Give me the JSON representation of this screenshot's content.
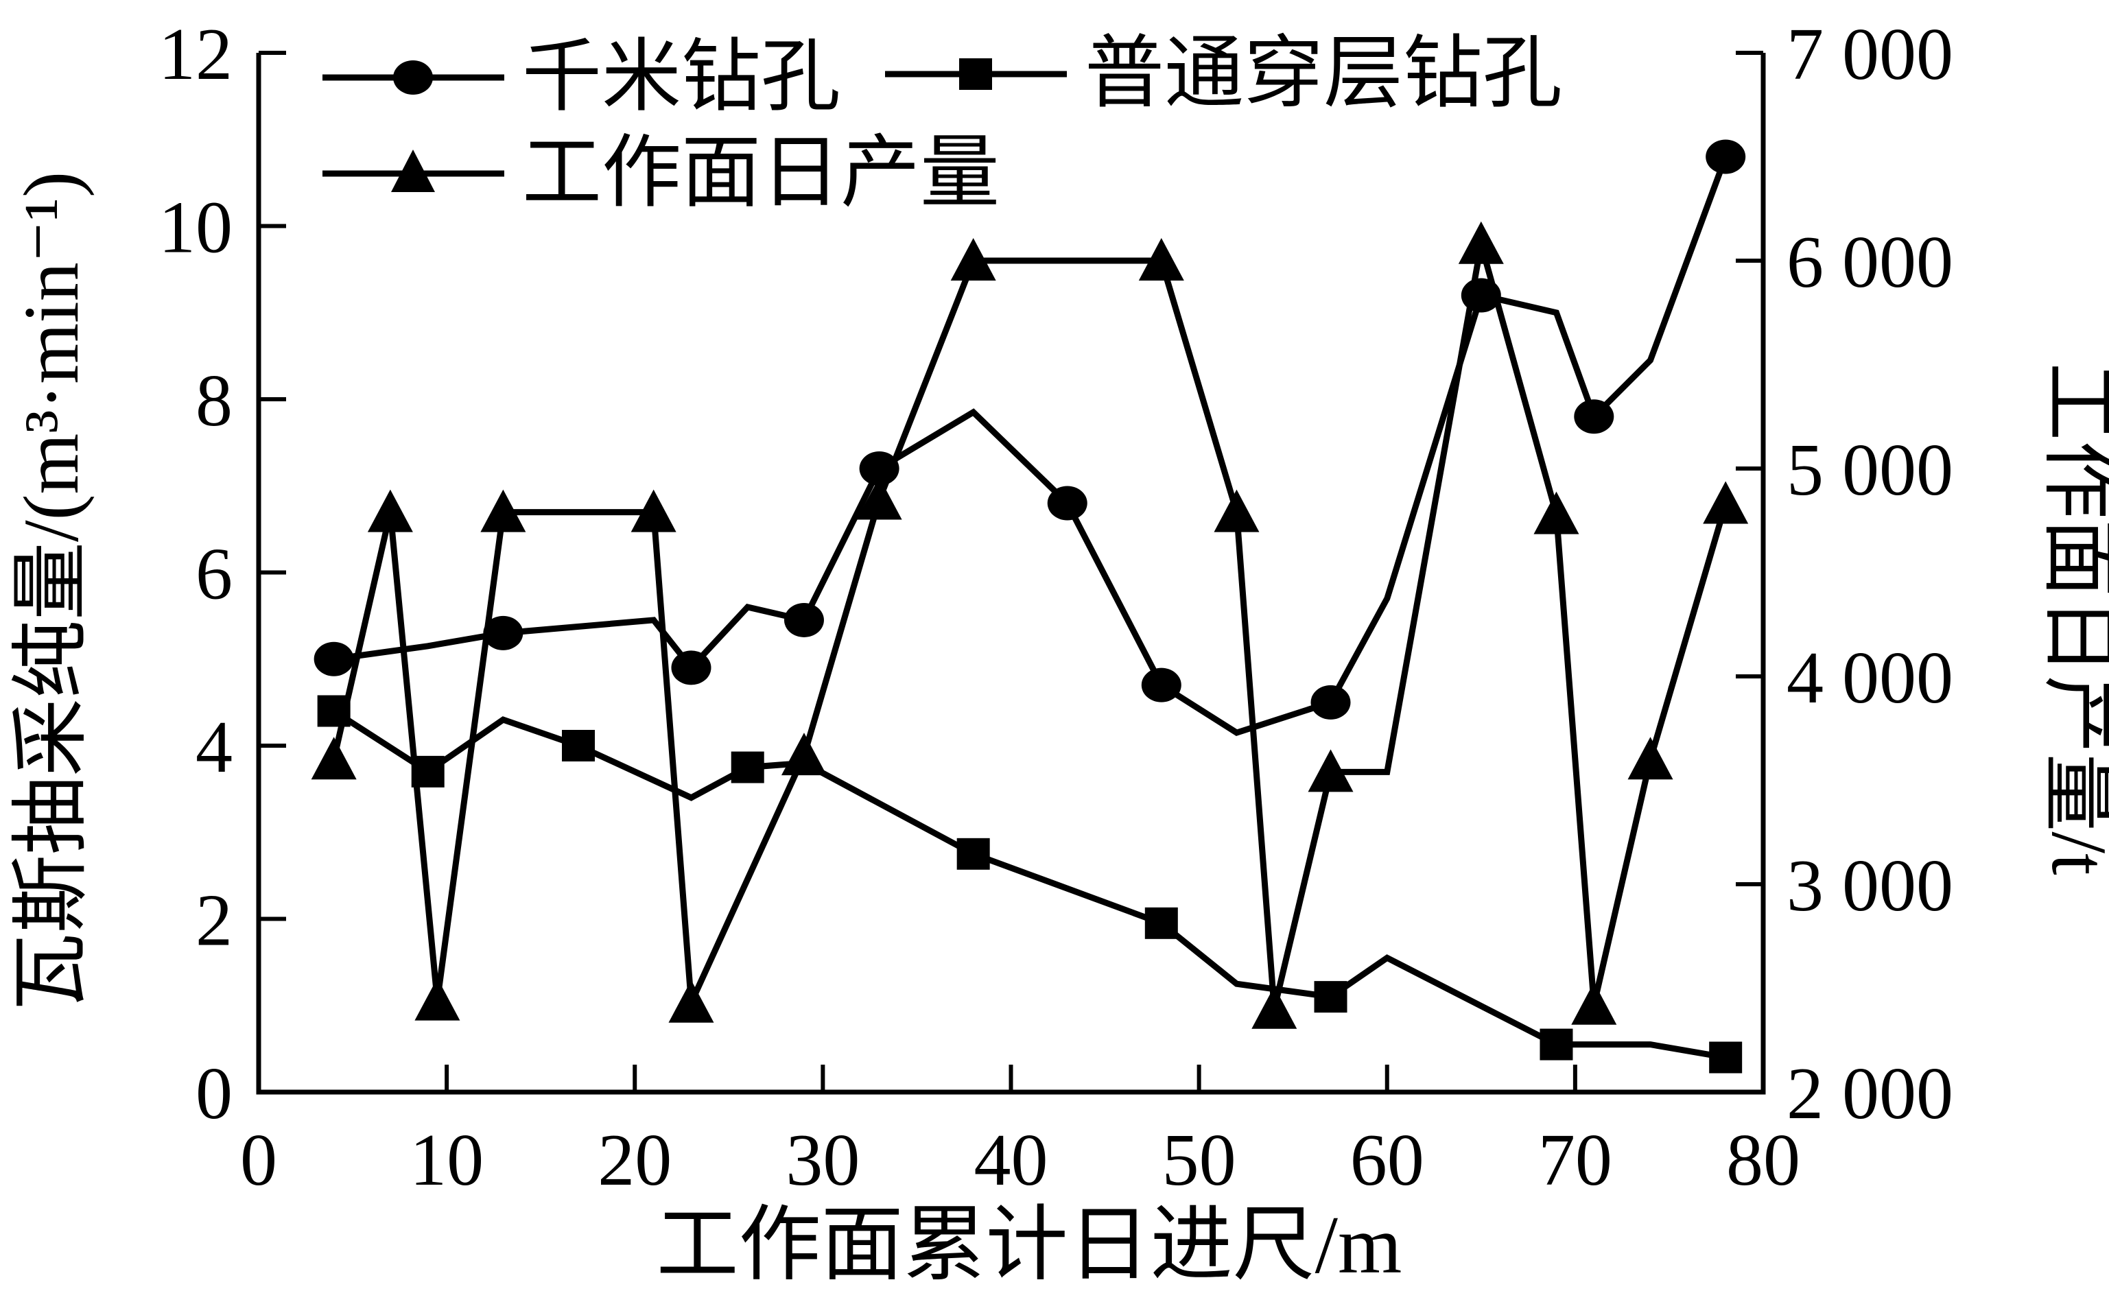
{
  "chart_data": {
    "type": "line",
    "title": "",
    "xlabel": "工作面累计日进尺/m",
    "ylabel_left": "瓦斯抽采纯量/(m³·min⁻¹)",
    "ylabel_right": "工作面日产量/t",
    "xlim": [
      0,
      80
    ],
    "ylim_left": [
      0,
      12
    ],
    "ylim_right": [
      2000,
      7000
    ],
    "grid": false,
    "legend_position": "top-inside",
    "x_ticks": [
      0,
      10,
      20,
      30,
      40,
      50,
      60,
      70,
      80
    ],
    "y_ticks_left": [
      0,
      2,
      4,
      6,
      8,
      10,
      12
    ],
    "y_ticks_right_values": [
      2000,
      3000,
      4000,
      5000,
      6000,
      7000
    ],
    "y_ticks_right_labels": [
      "2 000",
      "3 000",
      "4 000",
      "5 000",
      "6 000",
      "7 000"
    ],
    "series": [
      {
        "name": "千米钻孔",
        "marker": "circle",
        "axis": "left",
        "color": "#000000",
        "x": [
          4,
          9,
          13,
          21,
          23,
          26,
          29,
          33,
          38,
          43,
          48,
          52,
          57,
          60,
          65,
          69,
          71,
          74,
          78
        ],
        "y": [
          5.0,
          5.15,
          5.3,
          5.45,
          4.9,
          5.6,
          5.45,
          7.2,
          7.85,
          6.8,
          4.7,
          4.15,
          4.5,
          5.7,
          9.2,
          9.0,
          7.8,
          8.45,
          10.8
        ],
        "marker_x": [
          4,
          13,
          23,
          29,
          33,
          43,
          48,
          57,
          65,
          71,
          78
        ]
      },
      {
        "name": "普通穿层钻孔",
        "marker": "square",
        "axis": "left",
        "color": "#000000",
        "x": [
          4,
          9,
          13,
          17,
          23,
          26,
          29,
          38,
          48,
          52,
          57,
          60,
          69,
          74,
          78
        ],
        "y": [
          4.4,
          3.7,
          4.3,
          4.0,
          3.4,
          3.75,
          3.8,
          2.75,
          1.95,
          1.25,
          1.1,
          1.55,
          0.55,
          0.55,
          0.4
        ],
        "marker_x": [
          4,
          9,
          17,
          26,
          38,
          48,
          57,
          69,
          78
        ]
      },
      {
        "name": "工作面日产量",
        "marker": "triangle",
        "axis": "right",
        "color": "#000000",
        "x": [
          4,
          7,
          9.5,
          13,
          21,
          23,
          29,
          33,
          38,
          48,
          52,
          54,
          57,
          60,
          65,
          69,
          71,
          74,
          78
        ],
        "y": [
          3600,
          4790,
          2440,
          4790,
          4790,
          2430,
          3620,
          4850,
          6000,
          6000,
          4790,
          2400,
          3540,
          3540,
          6080,
          4780,
          2420,
          3600,
          4830
        ],
        "marker_x": [
          4,
          7,
          9.5,
          13,
          21,
          23,
          29,
          33,
          38,
          48,
          52,
          54,
          57,
          65,
          69,
          71,
          74,
          78
        ]
      }
    ],
    "colors": {
      "line": "#000000",
      "background": "#ffffff"
    }
  }
}
